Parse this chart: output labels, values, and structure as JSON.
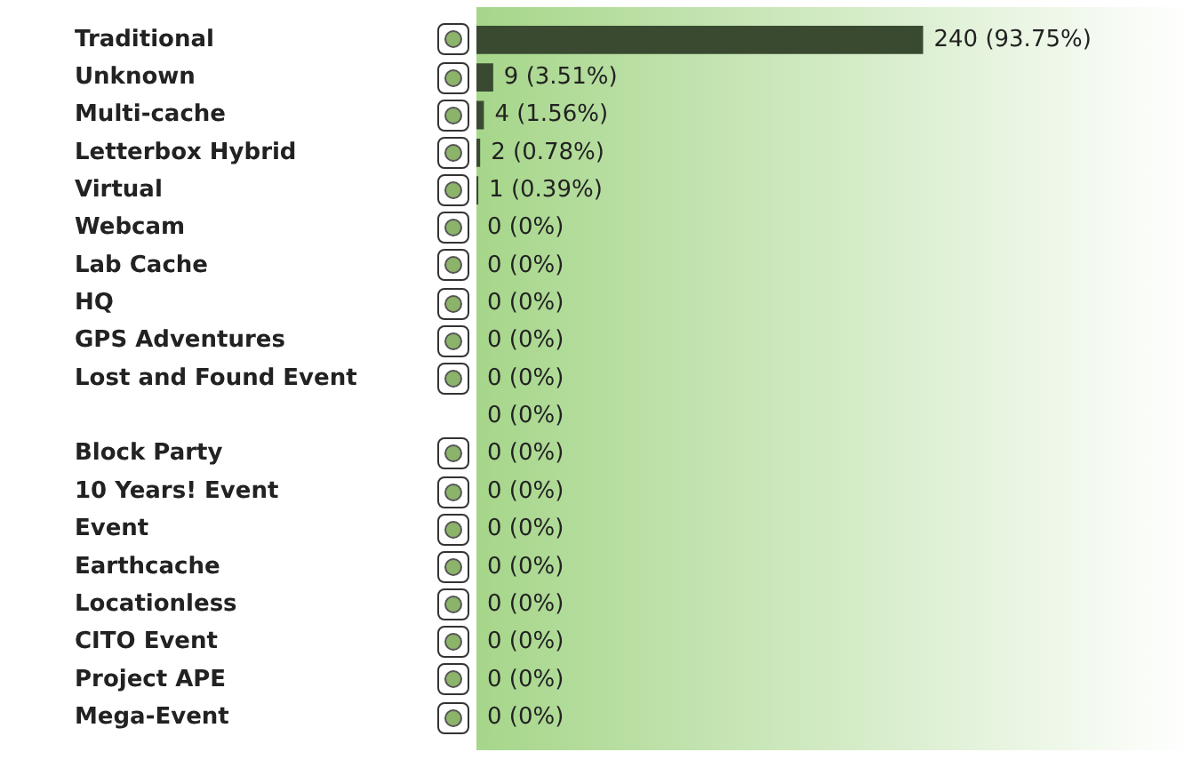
{
  "chart_data": {
    "type": "bar",
    "orientation": "horizontal",
    "categories": [
      "Traditional",
      "Unknown",
      "Multi-cache",
      "Letterbox Hybrid",
      "Virtual",
      "Webcam",
      "Lab Cache",
      "HQ",
      "GPS Adventures",
      "Lost and Found Event",
      null,
      "Block Party",
      "10 Years! Event",
      "Event",
      "Earthcache",
      "Locationless",
      "CITO Event",
      "Project APE",
      "Mega-Event"
    ],
    "values": [
      240,
      9,
      4,
      2,
      1,
      0,
      0,
      0,
      0,
      0,
      0,
      0,
      0,
      0,
      0,
      0,
      0,
      0,
      0
    ],
    "value_labels": [
      "240 (93.75%)",
      "9 (3.51%)",
      "4 (1.56%)",
      "2 (0.78%)",
      "1 (0.39%)",
      "0 (0%)",
      "0 (0%)",
      "0 (0%)",
      "0 (0%)",
      "0 (0%)",
      "0 (0%)",
      "0 (0%)",
      "0 (0%)",
      "0 (0%)",
      "0 (0%)",
      "0 (0%)",
      "0 (0%)",
      "0 (0%)",
      "0 (0%)"
    ],
    "color": "#3a4a31",
    "tick_labels": "y"
  }
}
